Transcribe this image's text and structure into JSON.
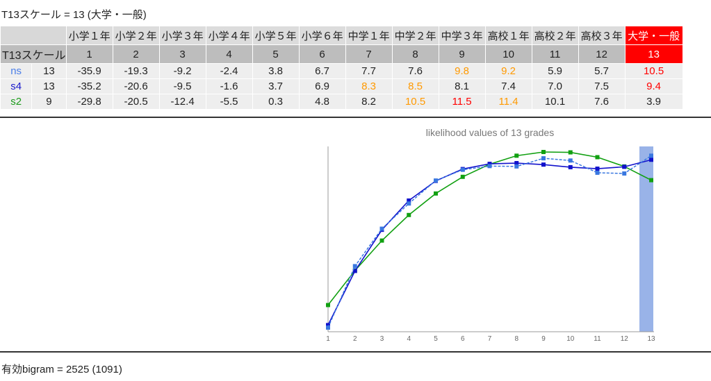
{
  "result_title": "T13スケール = 13 (大学・一般)",
  "table": {
    "grade_names": [
      "小学１年",
      "小学２年",
      "小学３年",
      "小学４年",
      "小学５年",
      "小学６年",
      "中学１年",
      "中学２年",
      "中学３年",
      "高校１年",
      "高校２年",
      "高校３年",
      "大学・一般"
    ],
    "scale_label": "T13スケール",
    "scale_numbers": [
      "1",
      "2",
      "3",
      "4",
      "5",
      "6",
      "7",
      "8",
      "9",
      "10",
      "11",
      "12",
      "13"
    ],
    "selected_index": 12,
    "rows": [
      {
        "name": "ns",
        "name_color": "#4a7ee8",
        "count": "13",
        "values": [
          "-35.9",
          "-19.3",
          "-9.2",
          "-2.4",
          "3.8",
          "6.7",
          "7.7",
          "7.6",
          "9.8",
          "9.2",
          "5.9",
          "5.7",
          "10.5"
        ],
        "colors": [
          "black",
          "black",
          "black",
          "black",
          "black",
          "black",
          "black",
          "black",
          "orange",
          "orange",
          "black",
          "black",
          "red"
        ]
      },
      {
        "name": "s4",
        "name_color": "#1a1acc",
        "count": "13",
        "values": [
          "-35.2",
          "-20.6",
          "-9.5",
          "-1.6",
          "3.7",
          "6.9",
          "8.3",
          "8.5",
          "8.1",
          "7.4",
          "7.0",
          "7.5",
          "9.4"
        ],
        "colors": [
          "black",
          "black",
          "black",
          "black",
          "black",
          "black",
          "orange",
          "orange",
          "black",
          "black",
          "black",
          "black",
          "red"
        ]
      },
      {
        "name": "s2",
        "name_color": "#1a9a1a",
        "count": "9",
        "values": [
          "-29.8",
          "-20.5",
          "-12.4",
          "-5.5",
          "0.3",
          "4.8",
          "8.2",
          "10.5",
          "11.5",
          "11.4",
          "10.1",
          "7.6",
          "3.9"
        ],
        "colors": [
          "black",
          "black",
          "black",
          "black",
          "black",
          "black",
          "black",
          "orange",
          "red",
          "orange",
          "black",
          "black",
          "black"
        ]
      }
    ]
  },
  "chart_data": {
    "type": "line",
    "title": "likelihood values of 13 grades",
    "x": [
      1,
      2,
      3,
      4,
      5,
      6,
      7,
      8,
      9,
      10,
      11,
      12,
      13
    ],
    "highlight_x": 13,
    "series": [
      {
        "name": "ns",
        "color": "#3a78e0",
        "dashed": true,
        "values": [
          -35.9,
          -19.3,
          -9.2,
          -2.4,
          3.8,
          6.7,
          7.7,
          7.6,
          9.8,
          9.2,
          5.9,
          5.7,
          10.5
        ]
      },
      {
        "name": "s4",
        "color": "#1111cc",
        "dashed": false,
        "values": [
          -35.2,
          -20.6,
          -9.5,
          -1.6,
          3.7,
          6.9,
          8.3,
          8.5,
          8.1,
          7.4,
          7.0,
          7.5,
          9.4
        ]
      },
      {
        "name": "s2",
        "color": "#11a011",
        "dashed": false,
        "values": [
          -29.8,
          -20.5,
          -12.4,
          -5.5,
          0.3,
          4.8,
          8.2,
          10.5,
          11.5,
          11.4,
          10.1,
          7.6,
          3.9
        ]
      }
    ],
    "ylim": [
      -37,
      13
    ],
    "colors": {
      "highlight": "#99b3e8",
      "axis": "#999999",
      "tick_text": "#666666",
      "title_text": "#777777"
    }
  },
  "footer": "有効bigram = 2525 (1091)"
}
